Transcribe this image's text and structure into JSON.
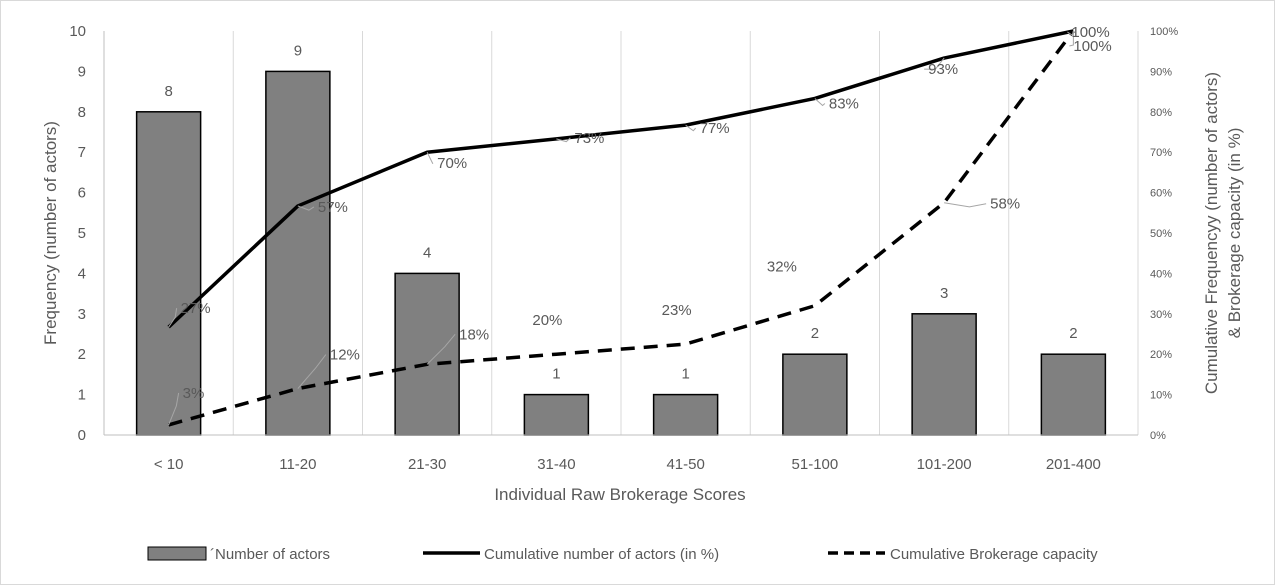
{
  "chart_data": {
    "type": "bar",
    "categories": [
      "< 10",
      "11-20",
      "21-30",
      "31-40",
      "41-50",
      "51-100",
      "101-200",
      "201-400"
    ],
    "xlabel": "Individual Raw Brokerage Scores",
    "ylabel": "Frequency (number of actors)",
    "y2label_line1": "Cumulative Frequencyy (number of actors)",
    "y2label_line2": "& Brokerage capacity (in %)",
    "ylim": [
      0,
      10
    ],
    "y2lim": [
      0,
      100
    ],
    "yticks": [
      "0",
      "1",
      "2",
      "3",
      "4",
      "5",
      "6",
      "7",
      "8",
      "9",
      "10"
    ],
    "y2ticks": [
      "0%",
      "10%",
      "20%",
      "30%",
      "40%",
      "50%",
      "60%",
      "70%",
      "80%",
      "90%",
      "100%"
    ],
    "grid": "vertical",
    "legend_position": "bottom",
    "series": [
      {
        "name": "´Number of actors",
        "type": "bar",
        "axis": "left",
        "values": [
          8,
          9,
          4,
          1,
          1,
          2,
          3,
          2
        ],
        "labels": [
          "8",
          "9",
          "4",
          "1",
          "1",
          "2",
          "3",
          "2"
        ],
        "color": "#808080"
      },
      {
        "name": "Cumulative number of actors (in %)",
        "type": "line",
        "axis": "right",
        "style": "solid",
        "values": [
          26.7,
          56.7,
          70,
          73.3,
          76.7,
          83.3,
          93.3,
          100
        ],
        "labels": [
          "27%",
          "57%",
          "70%",
          "73%",
          "77%",
          "83%",
          "93%",
          "100%"
        ],
        "color": "#000000"
      },
      {
        "name": "Cumulative Brokerage capacity",
        "type": "line",
        "axis": "right",
        "style": "dashed",
        "values": [
          2.5,
          11.5,
          17.5,
          20,
          22.5,
          32,
          57.5,
          100
        ],
        "labels": [
          "3%",
          "12%",
          "18%",
          "20%",
          "23%",
          "32%",
          "58%",
          "100%"
        ],
        "color": "#000000"
      }
    ]
  }
}
